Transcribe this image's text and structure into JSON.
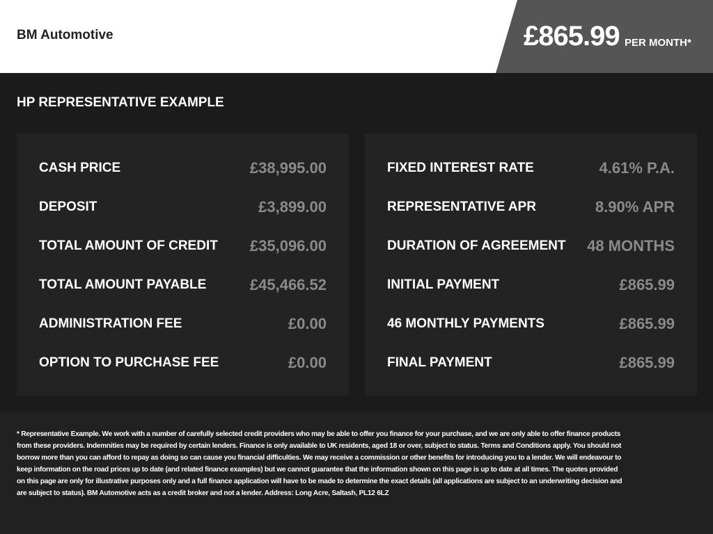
{
  "header": {
    "brand": "BM Automotive",
    "price": "£865.99",
    "per_month": "PER MONTH*"
  },
  "main": {
    "title": "HP REPRESENTATIVE EXAMPLE",
    "left": [
      {
        "label": "CASH PRICE",
        "value": "£38,995.00"
      },
      {
        "label": "DEPOSIT",
        "value": "£3,899.00"
      },
      {
        "label": "TOTAL AMOUNT OF CREDIT",
        "value": "£35,096.00"
      },
      {
        "label": "TOTAL AMOUNT PAYABLE",
        "value": "£45,466.52"
      },
      {
        "label": "ADMINISTRATION FEE",
        "value": "£0.00"
      },
      {
        "label": "OPTION TO PURCHASE FEE",
        "value": "£0.00"
      }
    ],
    "right": [
      {
        "label": "FIXED INTEREST RATE",
        "value": "4.61% P.A."
      },
      {
        "label": "REPRESENTATIVE APR",
        "value": "8.90% APR"
      },
      {
        "label": "DURATION OF AGREEMENT",
        "value": "48 MONTHS"
      },
      {
        "label": "INITIAL PAYMENT",
        "value": "£865.99"
      },
      {
        "label": "46 MONTHLY PAYMENTS",
        "value": "£865.99"
      },
      {
        "label": "FINAL PAYMENT",
        "value": "£865.99"
      }
    ]
  },
  "footer": {
    "disclaimer": "* Representative Example. We work with a number of carefully selected credit providers who may be able to offer you finance for your purchase, and we are only able to offer finance products from these providers. Indemnities may be required by certain lenders. Finance is only available to UK residents, aged 18 or over, subject to status. Terms and Conditions apply. You should not borrow more than you can afford to repay as doing so can cause you financial difficulties. We may receive a commission or other benefits for introducing you to a lender. We will endeavour to keep information on the road prices up to date (and related finance examples) but we cannot guarantee that the information shown on this page is up to date at all times. The quotes provided on this page are only for illustrative purposes only and a full finance application will have to be made to determine the exact details (all applications are subject to an underwriting decision and are subject to status). BM Automotive acts as a credit broker and not a lender. Address: Long Acre, Saltash, PL12 6LZ"
  }
}
